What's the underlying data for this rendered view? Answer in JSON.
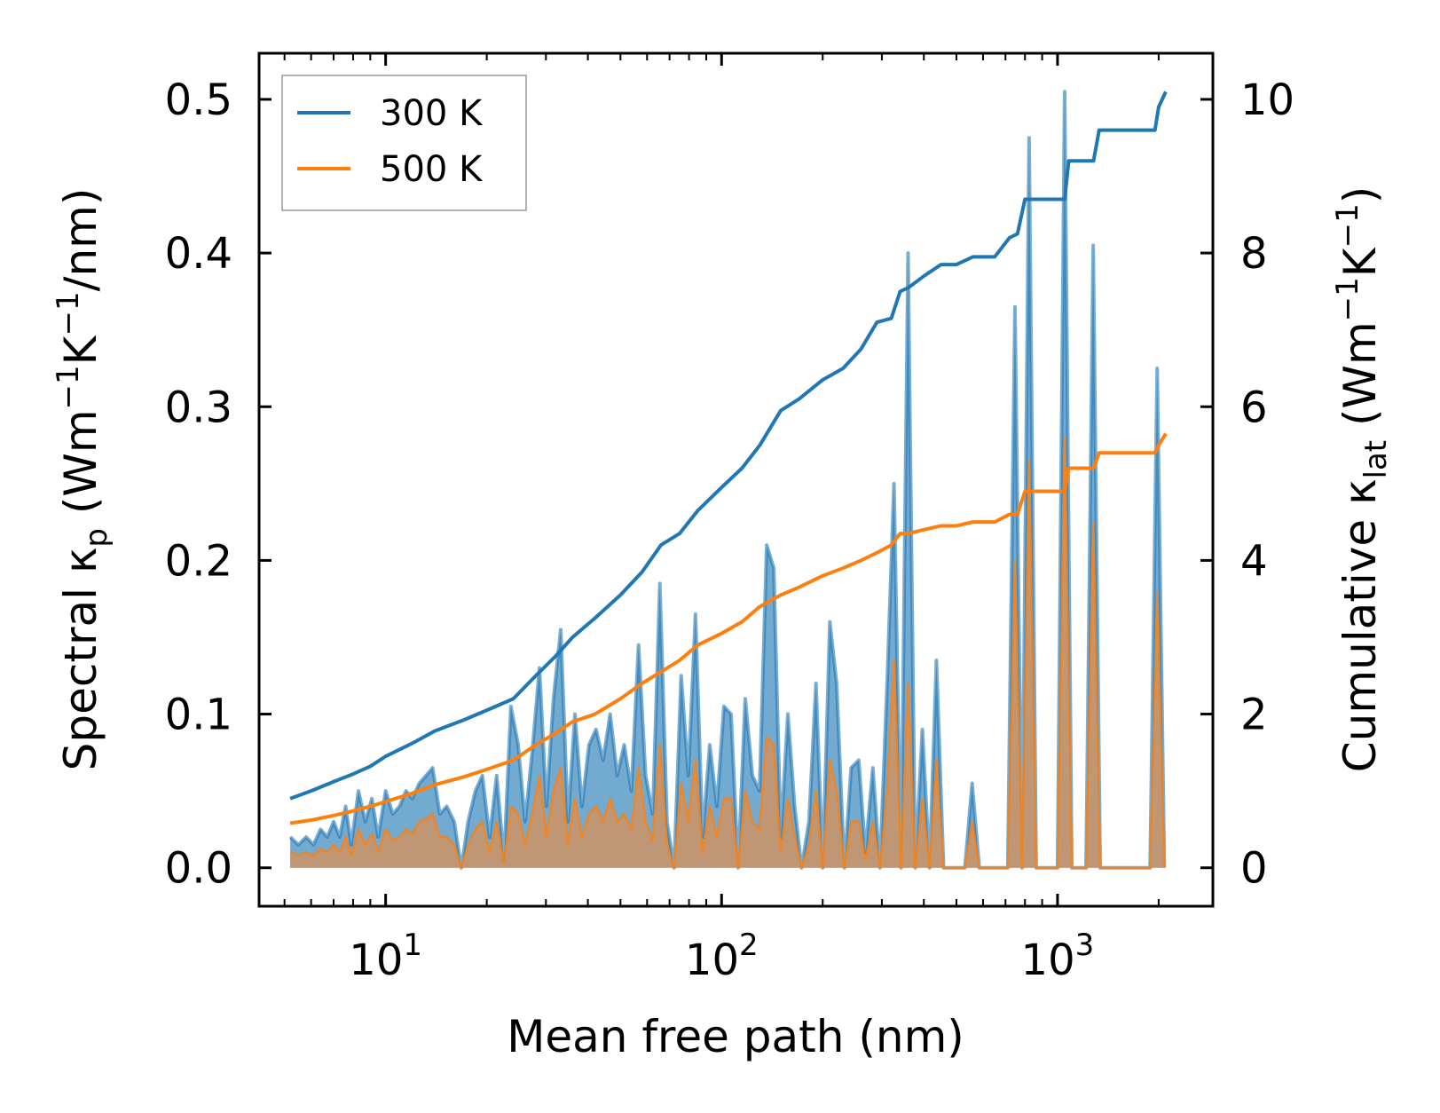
{
  "chart_data": {
    "type": "line",
    "xscale": "log",
    "xlabel": "Mean free path (nm)",
    "ylabel_left": "Spectral κ_p (Wm⁻¹K⁻¹/nm)",
    "ylabel_left_parts": {
      "pre": "Spectral κ",
      "sub": "p",
      "mid": " (Wm",
      "sup1": "−1",
      "mid2": "K",
      "sup2": "−1",
      "post": "/nm)"
    },
    "ylabel_right": "Cumulative κ_lat (Wm⁻¹K⁻¹)",
    "ylabel_right_parts": {
      "pre": "Cumulative κ",
      "sub": "lat",
      "mid": " (Wm",
      "sup1": "−1",
      "mid2": "K",
      "sup2": "−1",
      "post": ")"
    },
    "xlim": [
      4.2,
      2900
    ],
    "ylim_left": [
      -0.025,
      0.53
    ],
    "ylim_right": [
      -0.5,
      10.6
    ],
    "xticks": [
      {
        "value": 10,
        "base": "10",
        "exp": "1"
      },
      {
        "value": 100,
        "base": "10",
        "exp": "2"
      },
      {
        "value": 1000,
        "base": "10",
        "exp": "3"
      }
    ],
    "yticks_left": [
      "0.0",
      "0.1",
      "0.2",
      "0.3",
      "0.4",
      "0.5"
    ],
    "yticks_right": [
      "0",
      "2",
      "4",
      "6",
      "8",
      "10"
    ],
    "legend": {
      "position": "top-left",
      "entries": [
        "300 K",
        "500 K"
      ]
    },
    "colors": {
      "300K": "#1f77b4",
      "500K": "#ff7f0e",
      "fill_300K": "#5b9bc8",
      "fill_500K": "#c4966f"
    },
    "series": [
      {
        "name": "300 K",
        "kind": "cumulative",
        "axis": "right",
        "x": [
          5.2,
          6,
          7,
          8,
          9,
          10,
          12,
          14,
          17,
          20,
          24,
          28,
          32,
          36,
          42,
          50,
          58,
          66,
          75,
          85,
          100,
          115,
          130,
          150,
          170,
          200,
          230,
          260,
          290,
          320,
          340,
          360,
          400,
          450,
          500,
          560,
          650,
          720,
          760,
          800,
          860,
          960,
          1050,
          1080,
          1280,
          1330,
          1500,
          1800,
          1950,
          2000,
          2100
        ],
        "y": [
          0.9,
          1.0,
          1.12,
          1.22,
          1.32,
          1.45,
          1.62,
          1.78,
          1.92,
          2.05,
          2.2,
          2.5,
          2.75,
          3.0,
          3.25,
          3.55,
          3.85,
          4.2,
          4.35,
          4.65,
          4.95,
          5.2,
          5.5,
          5.95,
          6.1,
          6.35,
          6.5,
          6.75,
          7.1,
          7.15,
          7.5,
          7.55,
          7.7,
          7.85,
          7.85,
          7.95,
          7.95,
          8.2,
          8.25,
          8.7,
          8.7,
          8.7,
          8.7,
          9.2,
          9.2,
          9.6,
          9.6,
          9.6,
          9.6,
          9.9,
          10.1
        ]
      },
      {
        "name": "500 K",
        "kind": "cumulative",
        "axis": "right",
        "x": [
          5.2,
          6,
          7,
          8,
          9,
          10,
          12,
          14,
          17,
          20,
          24,
          28,
          32,
          36,
          42,
          50,
          58,
          66,
          75,
          85,
          100,
          115,
          130,
          150,
          170,
          200,
          230,
          260,
          290,
          320,
          340,
          360,
          400,
          450,
          500,
          560,
          650,
          720,
          760,
          800,
          860,
          960,
          1050,
          1080,
          1280,
          1330,
          1500,
          1800,
          1950,
          2000,
          2100
        ],
        "y": [
          0.58,
          0.62,
          0.68,
          0.74,
          0.8,
          0.86,
          0.97,
          1.08,
          1.18,
          1.28,
          1.4,
          1.6,
          1.75,
          1.9,
          2.0,
          2.2,
          2.4,
          2.55,
          2.7,
          2.9,
          3.05,
          3.2,
          3.4,
          3.55,
          3.65,
          3.8,
          3.9,
          4.0,
          4.1,
          4.2,
          4.35,
          4.35,
          4.4,
          4.45,
          4.45,
          4.5,
          4.5,
          4.6,
          4.6,
          4.9,
          4.9,
          4.9,
          4.9,
          5.2,
          5.2,
          5.4,
          5.4,
          5.4,
          5.4,
          5.5,
          5.65
        ]
      },
      {
        "name": "300 K",
        "kind": "spectral",
        "axis": "left",
        "x": [
          5.2,
          5.5,
          5.8,
          6.1,
          6.4,
          6.7,
          7.0,
          7.3,
          7.6,
          7.9,
          8.3,
          8.7,
          9.1,
          9.5,
          10,
          10.5,
          11,
          11.5,
          12,
          12.6,
          13.2,
          13.8,
          14.5,
          15.2,
          16,
          16.8,
          17.6,
          18.5,
          19.4,
          20.4,
          21.4,
          22.5,
          23.6,
          24.8,
          26,
          27.3,
          28.7,
          30.1,
          31.6,
          33.2,
          34.9,
          36.6,
          38.4,
          40.3,
          42.3,
          44.4,
          46.6,
          48.9,
          51.3,
          53.9,
          56.6,
          59.4,
          62.4,
          65.5,
          68.8,
          72.2,
          75.8,
          79.6,
          83.6,
          87.8,
          92.2,
          96.8,
          101.6,
          106.7,
          112,
          117.6,
          123.5,
          129.7,
          136.2,
          143,
          150,
          157.5,
          165,
          173,
          182,
          191,
          200,
          210,
          220,
          232,
          243,
          256,
          268,
          282,
          296,
          311,
          326,
          342,
          359,
          377,
          396,
          416,
          436,
          458,
          481,
          505,
          530,
          557,
          585,
          614,
          645,
          677,
          711,
          747,
          784,
          823,
          864,
          907,
          953,
          1000,
          1050,
          1103,
          1158,
          1216,
          1277,
          1340,
          1407,
          1478,
          1552,
          1629,
          1711,
          1796,
          1886,
          1980,
          2080
        ],
        "y": [
          0.02,
          0.015,
          0.02,
          0.015,
          0.025,
          0.02,
          0.03,
          0.02,
          0.04,
          0.015,
          0.05,
          0.03,
          0.045,
          0.02,
          0.05,
          0.035,
          0.04,
          0.05,
          0.045,
          0.055,
          0.06,
          0.065,
          0.035,
          0.04,
          0.03,
          0.0,
          0.03,
          0.05,
          0.06,
          0.02,
          0.06,
          0.005,
          0.105,
          0.08,
          0.03,
          0.075,
          0.13,
          0.04,
          0.11,
          0.155,
          0.03,
          0.1,
          0.04,
          0.08,
          0.09,
          0.07,
          0.1,
          0.06,
          0.08,
          0.05,
          0.145,
          0.06,
          0.035,
          0.185,
          0.03,
          0.0,
          0.125,
          0.06,
          0.165,
          0.02,
          0.08,
          0.04,
          0.105,
          0.1,
          0.0,
          0.11,
          0.06,
          0.05,
          0.21,
          0.195,
          0.02,
          0.1,
          0.04,
          0.0,
          0.03,
          0.12,
          0.0,
          0.16,
          0.12,
          0.0,
          0.065,
          0.07,
          0.01,
          0.065,
          0.0,
          0.12,
          0.25,
          0.0,
          0.4,
          0.0,
          0.09,
          0.0,
          0.135,
          0.0,
          0.0,
          0.0,
          0.0,
          0.055,
          0.0,
          0.0,
          0.0,
          0.0,
          0.0,
          0.365,
          0.0,
          0.475,
          0.0,
          0.0,
          0.0,
          0.0,
          0.505,
          0.0,
          0.0,
          0.0,
          0.405,
          0.0,
          0.0,
          0.0,
          0.0,
          0.0,
          0.0,
          0.0,
          0.0,
          0.325,
          0.0
        ]
      },
      {
        "name": "500 K",
        "kind": "spectral",
        "axis": "left",
        "x": [
          5.2,
          5.5,
          5.8,
          6.1,
          6.4,
          6.7,
          7.0,
          7.3,
          7.6,
          7.9,
          8.3,
          8.7,
          9.1,
          9.5,
          10,
          10.5,
          11,
          11.5,
          12,
          12.6,
          13.2,
          13.8,
          14.5,
          15.2,
          16,
          16.8,
          17.6,
          18.5,
          19.4,
          20.4,
          21.4,
          22.5,
          23.6,
          24.8,
          26,
          27.3,
          28.7,
          30.1,
          31.6,
          33.2,
          34.9,
          36.6,
          38.4,
          40.3,
          42.3,
          44.4,
          46.6,
          48.9,
          51.3,
          53.9,
          56.6,
          59.4,
          62.4,
          65.5,
          68.8,
          72.2,
          75.8,
          79.6,
          83.6,
          87.8,
          92.2,
          96.8,
          101.6,
          106.7,
          112,
          117.6,
          123.5,
          129.7,
          136.2,
          143,
          150,
          157.5,
          165,
          173,
          182,
          191,
          200,
          210,
          220,
          232,
          243,
          256,
          268,
          282,
          296,
          311,
          326,
          342,
          359,
          377,
          396,
          416,
          436,
          458,
          481,
          505,
          530,
          557,
          585,
          614,
          645,
          677,
          711,
          747,
          784,
          823,
          864,
          907,
          953,
          1000,
          1050,
          1103,
          1158,
          1216,
          1277,
          1340,
          1407,
          1478,
          1552,
          1629,
          1711,
          1796,
          1886,
          1980,
          2080
        ],
        "y": [
          0.01,
          0.008,
          0.01,
          0.008,
          0.012,
          0.01,
          0.015,
          0.01,
          0.02,
          0.008,
          0.025,
          0.015,
          0.022,
          0.01,
          0.025,
          0.018,
          0.02,
          0.025,
          0.022,
          0.03,
          0.032,
          0.035,
          0.02,
          0.02,
          0.015,
          0.0,
          0.015,
          0.025,
          0.03,
          0.01,
          0.03,
          0.003,
          0.04,
          0.035,
          0.015,
          0.035,
          0.06,
          0.02,
          0.05,
          0.065,
          0.015,
          0.045,
          0.02,
          0.035,
          0.04,
          0.03,
          0.045,
          0.03,
          0.035,
          0.025,
          0.065,
          0.03,
          0.018,
          0.08,
          0.015,
          0.0,
          0.055,
          0.03,
          0.07,
          0.01,
          0.04,
          0.02,
          0.045,
          0.045,
          0.0,
          0.05,
          0.03,
          0.025,
          0.085,
          0.08,
          0.01,
          0.045,
          0.02,
          0.0,
          0.015,
          0.05,
          0.0,
          0.07,
          0.05,
          0.0,
          0.03,
          0.03,
          0.005,
          0.03,
          0.0,
          0.05,
          0.135,
          0.0,
          0.12,
          0.0,
          0.045,
          0.0,
          0.07,
          0.0,
          0.0,
          0.0,
          0.0,
          0.03,
          0.0,
          0.0,
          0.0,
          0.0,
          0.0,
          0.2,
          0.0,
          0.265,
          0.0,
          0.0,
          0.0,
          0.0,
          0.28,
          0.0,
          0.0,
          0.0,
          0.225,
          0.0,
          0.0,
          0.0,
          0.0,
          0.0,
          0.0,
          0.0,
          0.0,
          0.18,
          0.0
        ]
      }
    ]
  }
}
